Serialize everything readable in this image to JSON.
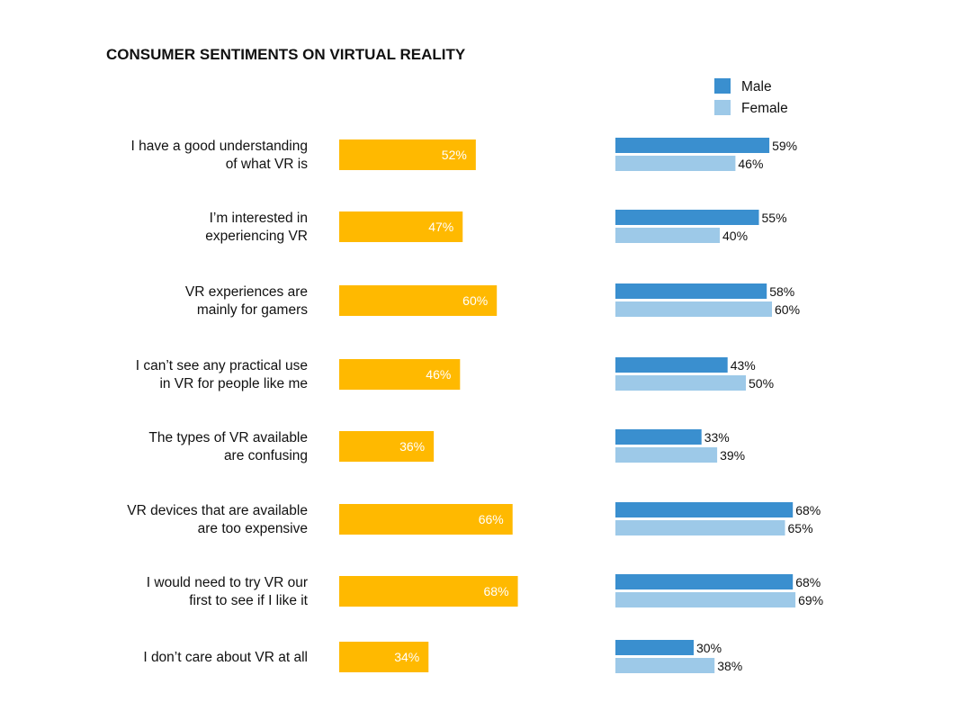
{
  "chart_data": {
    "type": "bar",
    "title": "CONSUMER SENTIMENTS ON VIRTUAL REALITY",
    "unit": "%",
    "categories": [
      [
        "I have a good understanding",
        "of what VR is"
      ],
      [
        "I’m interested in",
        "experiencing VR"
      ],
      [
        "VR experiences are",
        "mainly for gamers"
      ],
      [
        "I can’t see any practical use",
        "in VR for people like me"
      ],
      [
        "The types of VR available",
        "are confusing"
      ],
      [
        "VR devices that are available",
        "are too expensive"
      ],
      [
        "I would need to try VR our",
        "first to see if I like it"
      ],
      [
        "I don’t care about VR at all"
      ]
    ],
    "overall": {
      "values": [
        52,
        47,
        60,
        46,
        36,
        66,
        68,
        34
      ],
      "color": "#FFB900"
    },
    "series": [
      {
        "name": "Male",
        "values": [
          59,
          55,
          58,
          43,
          33,
          68,
          68,
          30
        ],
        "color": "#3A8FCF"
      },
      {
        "name": "Female",
        "values": [
          46,
          40,
          60,
          50,
          39,
          65,
          69,
          38
        ],
        "color": "#9DC9E8"
      }
    ],
    "legend_placement": "top-right",
    "grid": false
  }
}
